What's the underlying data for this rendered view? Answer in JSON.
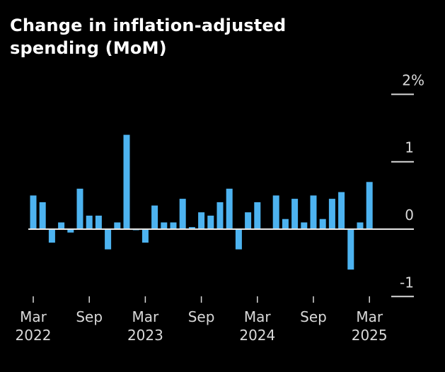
{
  "chart_data": {
    "type": "bar",
    "title": "Change in inflation-adjusted spending (MoM)",
    "title_lines": [
      "Change in inflation-adjusted",
      "spending (MoM)"
    ],
    "xlabel": "",
    "ylabel": "",
    "ylim": [
      -1,
      2
    ],
    "yticks": [
      {
        "value": 2,
        "label": "2%"
      },
      {
        "value": 1,
        "label": "1"
      },
      {
        "value": 0,
        "label": "0"
      },
      {
        "value": -1,
        "label": "-1"
      }
    ],
    "grid": false,
    "bar_color": "#4db3f0",
    "categories": [
      "2022-03",
      "2022-04",
      "2022-05",
      "2022-06",
      "2022-07",
      "2022-08",
      "2022-09",
      "2022-10",
      "2022-11",
      "2022-12",
      "2023-01",
      "2023-02",
      "2023-03",
      "2023-04",
      "2023-05",
      "2023-06",
      "2023-07",
      "2023-08",
      "2023-09",
      "2023-10",
      "2023-11",
      "2023-12",
      "2024-01",
      "2024-02",
      "2024-03",
      "2024-04",
      "2024-05",
      "2024-06",
      "2024-07",
      "2024-08",
      "2024-09",
      "2024-10",
      "2024-11",
      "2024-12",
      "2025-01",
      "2025-02",
      "2025-03"
    ],
    "values": [
      0.5,
      0.4,
      -0.2,
      0.1,
      -0.05,
      0.6,
      0.2,
      0.2,
      -0.3,
      0.1,
      1.4,
      -0.01,
      -0.2,
      0.35,
      0.1,
      0.1,
      0.45,
      0.03,
      0.25,
      0.2,
      0.4,
      0.6,
      -0.3,
      0.25,
      0.4,
      0.0,
      0.5,
      0.15,
      0.45,
      0.1,
      0.5,
      0.15,
      0.45,
      0.55,
      -0.6,
      0.1,
      0.7
    ],
    "xticks": [
      {
        "index": 0,
        "line1": "Mar",
        "line2": "2022"
      },
      {
        "index": 6,
        "line1": "Sep",
        "line2": ""
      },
      {
        "index": 12,
        "line1": "Mar",
        "line2": "2023"
      },
      {
        "index": 18,
        "line1": "Sep",
        "line2": ""
      },
      {
        "index": 24,
        "line1": "Mar",
        "line2": "2024"
      },
      {
        "index": 30,
        "line1": "Sep",
        "line2": ""
      },
      {
        "index": 36,
        "line1": "Mar",
        "line2": "2025"
      }
    ]
  }
}
